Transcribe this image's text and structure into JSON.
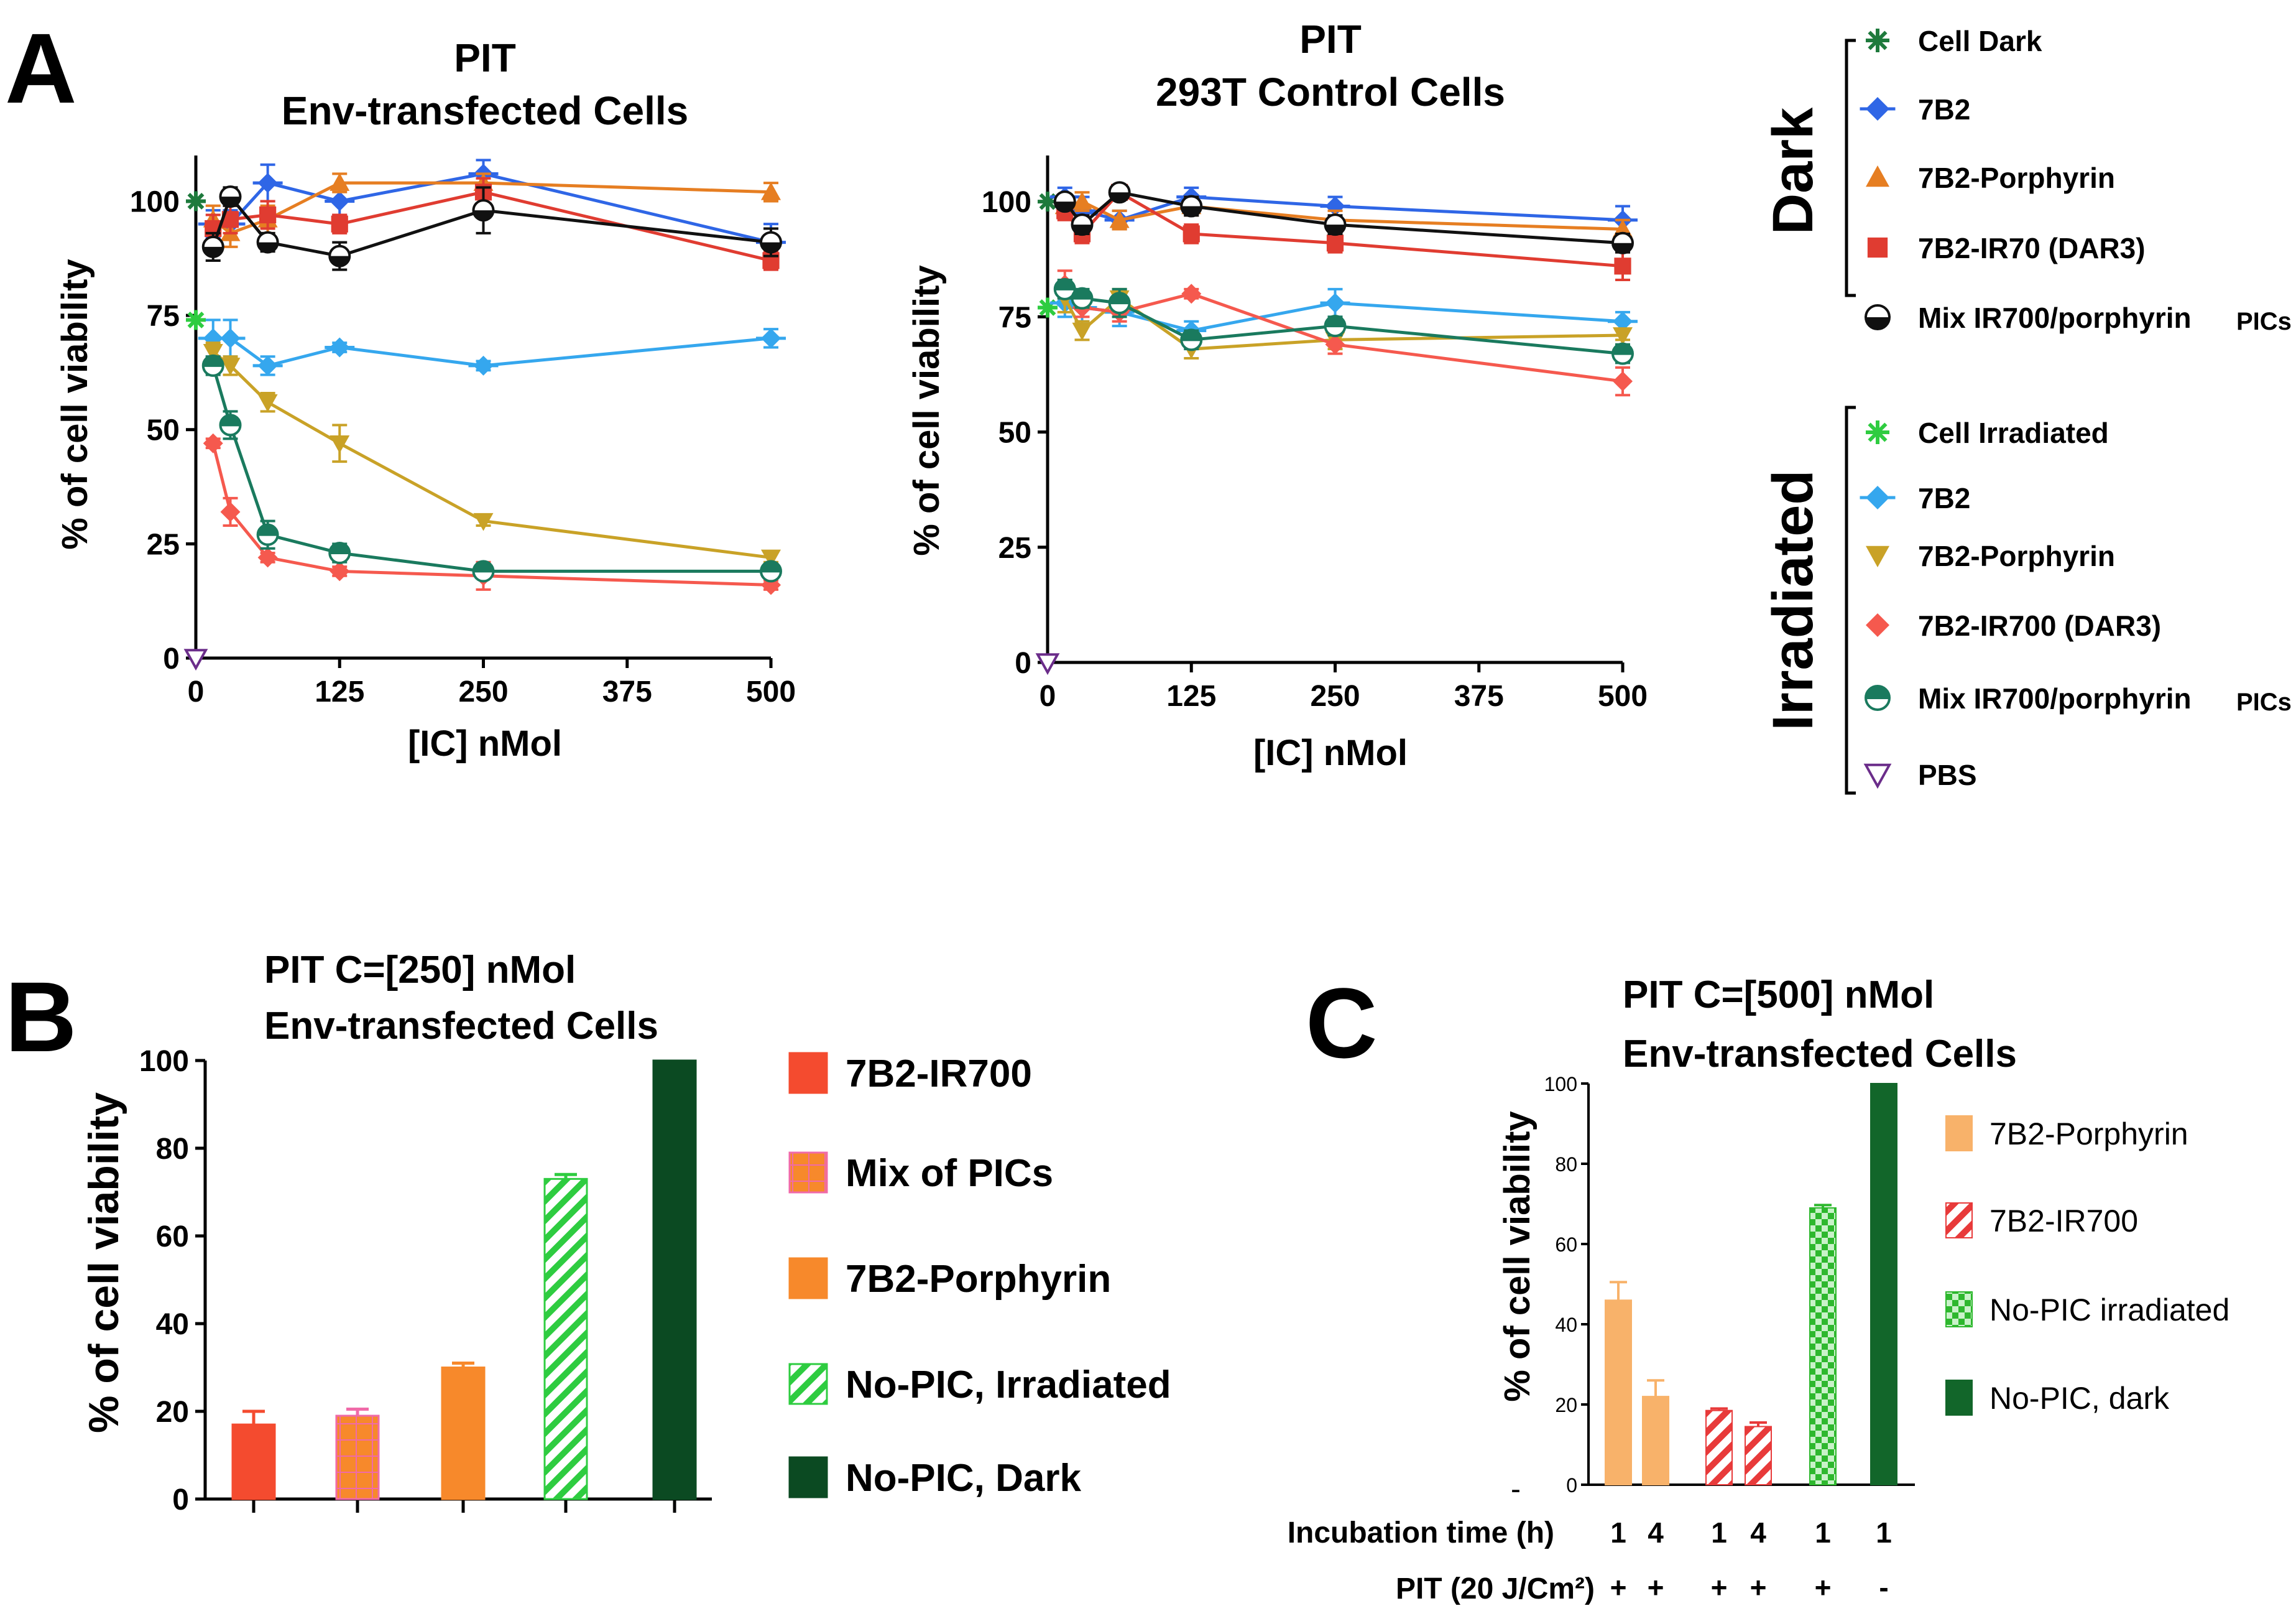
{
  "panels": {
    "A": "A",
    "B": "B",
    "C": "C"
  },
  "chart_data": [
    {
      "id": "A1",
      "type": "line",
      "title": [
        "PIT",
        "Env-transfected Cells"
      ],
      "xlabel": "[IC] nMol",
      "ylabel": "% of cell viability",
      "xlim": [
        0,
        500
      ],
      "ylim": [
        0,
        110
      ],
      "xticks": [
        "0",
        "125",
        "250",
        "375",
        "500"
      ],
      "yticks": [
        "0",
        "25",
        "50",
        "75",
        "100"
      ],
      "series": [
        {
          "key": "cell_dark",
          "x": [
            0
          ],
          "y": [
            100
          ],
          "err": [
            0
          ]
        },
        {
          "key": "b2_dark",
          "x": [
            15,
            30,
            62.5,
            125,
            250,
            500
          ],
          "y": [
            95,
            95,
            104,
            100,
            106,
            91
          ],
          "err": [
            3,
            3,
            4,
            3,
            3,
            4
          ]
        },
        {
          "key": "porph_dark",
          "x": [
            15,
            30,
            62.5,
            125,
            250,
            500
          ],
          "y": [
            96,
            93,
            96,
            104,
            104,
            102
          ],
          "err": [
            3,
            3,
            3,
            2,
            2,
            2
          ]
        },
        {
          "key": "ir_dark",
          "x": [
            15,
            30,
            62.5,
            125,
            250,
            500
          ],
          "y": [
            94,
            96,
            97,
            95,
            102,
            87
          ],
          "err": [
            3,
            3,
            3,
            2,
            3,
            2
          ]
        },
        {
          "key": "mix_dark",
          "x": [
            15,
            30,
            62.5,
            125,
            250,
            500
          ],
          "y": [
            90,
            101,
            91,
            88,
            98,
            91
          ],
          "err": [
            3,
            2,
            2,
            3,
            5,
            3
          ]
        },
        {
          "key": "cell_irr",
          "x": [
            0
          ],
          "y": [
            74
          ],
          "err": [
            0
          ]
        },
        {
          "key": "b2_irr",
          "x": [
            15,
            30,
            62.5,
            125,
            250,
            500
          ],
          "y": [
            70,
            70,
            64,
            68,
            64,
            70
          ],
          "err": [
            4,
            4,
            2,
            1,
            1,
            2
          ]
        },
        {
          "key": "porph_irr",
          "x": [
            15,
            30,
            62.5,
            125,
            250,
            500
          ],
          "y": [
            67,
            64,
            56,
            47,
            30,
            22
          ],
          "err": [
            2,
            2,
            2,
            4,
            1,
            1
          ]
        },
        {
          "key": "ir_irr",
          "x": [
            15,
            30,
            62.5,
            125,
            250,
            500
          ],
          "y": [
            47,
            32,
            22,
            19,
            18,
            16
          ],
          "err": [
            1,
            3,
            1,
            1,
            3,
            1
          ]
        },
        {
          "key": "mix_irr",
          "x": [
            15,
            30,
            62.5,
            125,
            250,
            500
          ],
          "y": [
            64,
            51,
            27,
            23,
            19,
            19
          ],
          "err": [
            2,
            3,
            3,
            2,
            1,
            1
          ]
        },
        {
          "key": "pbs",
          "x": [
            0
          ],
          "y": [
            0
          ],
          "err": [
            0
          ]
        }
      ]
    },
    {
      "id": "A2",
      "type": "line",
      "title": [
        "PIT",
        "293T Control Cells"
      ],
      "xlabel": "[IC] nMol",
      "ylabel": "% of cell viability",
      "xlim": [
        0,
        500
      ],
      "ylim": [
        0,
        110
      ],
      "xticks": [
        "0",
        "125",
        "250",
        "375",
        "500"
      ],
      "yticks": [
        "0",
        "25",
        "50",
        "75",
        "100"
      ],
      "series": [
        {
          "key": "cell_dark",
          "x": [
            0
          ],
          "y": [
            100
          ],
          "err": [
            0
          ]
        },
        {
          "key": "b2_dark",
          "x": [
            15,
            30,
            62.5,
            125,
            250,
            500
          ],
          "y": [
            101,
            98,
            96,
            101,
            99,
            96
          ],
          "err": [
            2,
            3,
            2,
            2,
            2,
            3
          ]
        },
        {
          "key": "porph_dark",
          "x": [
            15,
            30,
            62.5,
            125,
            250,
            500
          ],
          "y": [
            99,
            100,
            96,
            99,
            96,
            94
          ],
          "err": [
            2,
            2,
            2,
            2,
            2,
            2
          ]
        },
        {
          "key": "ir_dark",
          "x": [
            15,
            30,
            62.5,
            125,
            250,
            500
          ],
          "y": [
            98,
            93,
            102,
            93,
            91,
            86
          ],
          "err": [
            2,
            2,
            1,
            2,
            2,
            3
          ]
        },
        {
          "key": "mix_dark",
          "x": [
            15,
            30,
            62.5,
            125,
            250,
            500
          ],
          "y": [
            100,
            95,
            102,
            99,
            95,
            91
          ],
          "err": [
            1,
            2,
            1,
            2,
            2,
            2
          ]
        },
        {
          "key": "cell_irr",
          "x": [
            0
          ],
          "y": [
            77
          ],
          "err": [
            0
          ]
        },
        {
          "key": "b2_irr",
          "x": [
            15,
            30,
            62.5,
            125,
            250,
            500
          ],
          "y": [
            78,
            77,
            76,
            72,
            78,
            74
          ],
          "err": [
            3,
            3,
            3,
            2,
            3,
            2
          ]
        },
        {
          "key": "porph_irr",
          "x": [
            15,
            30,
            62.5,
            125,
            250,
            500
          ],
          "y": [
            79,
            72,
            79,
            68,
            70,
            71
          ],
          "err": [
            3,
            2,
            2,
            2,
            2,
            1
          ]
        },
        {
          "key": "ir_irr",
          "x": [
            15,
            30,
            62.5,
            125,
            250,
            500
          ],
          "y": [
            82,
            77,
            76,
            80,
            69,
            61
          ],
          "err": [
            3,
            2,
            2,
            1,
            2,
            3
          ]
        },
        {
          "key": "mix_irr",
          "x": [
            15,
            30,
            62.5,
            125,
            250,
            500
          ],
          "y": [
            81,
            79,
            78,
            70,
            73,
            67
          ],
          "err": [
            2,
            2,
            3,
            2,
            2,
            2
          ]
        },
        {
          "key": "pbs",
          "x": [
            0
          ],
          "y": [
            0
          ],
          "err": [
            0
          ]
        }
      ]
    },
    {
      "id": "B",
      "type": "bar",
      "title": [
        "PIT   C=[250] nMol",
        "Env-transfected Cells"
      ],
      "ylabel": "% of cell viability",
      "ylim": [
        0,
        100
      ],
      "yticks": [
        "0",
        "20",
        "40",
        "60",
        "80",
        "100"
      ],
      "categories": [
        "7B2-IR700",
        "Mix of PICs",
        "7B2-Porphyrin",
        "No-PIC, Irradiated",
        "No-PIC, Dark"
      ],
      "values": [
        17,
        19,
        30,
        73,
        100
      ],
      "errors": [
        3,
        1.5,
        1,
        1,
        0
      ]
    },
    {
      "id": "C",
      "type": "bar",
      "title": [
        "PIT   C=[500] nMol",
        "Env-transfected Cells"
      ],
      "ylabel": "% of cell viability",
      "ylim": [
        0,
        100
      ],
      "yticks": [
        "0",
        "20",
        "40",
        "60",
        "80",
        "100"
      ],
      "categories": [
        "7B2-Porphyrin",
        "7B2-Porphyrin",
        "7B2-IR700",
        "7B2-IR700",
        "No-PIC irradiated",
        "No-PIC, dark"
      ],
      "values": [
        46,
        22,
        18.5,
        14.5,
        69,
        100
      ],
      "errors": [
        4.5,
        4,
        0.5,
        1,
        0.7,
        0
      ],
      "incubation": [
        "1",
        "4",
        "1",
        "4",
        "1",
        "1"
      ],
      "pit": [
        "+",
        "+",
        "+",
        "+",
        "+",
        "-"
      ],
      "row_labels": {
        "incubation": "Incubation time (h)",
        "pit": "PIT (20 J/Cm²)"
      },
      "stray_mark": "-"
    }
  ],
  "legend_A": {
    "dark_group": "Dark",
    "irradiated_group": "Irradiated",
    "items": [
      {
        "key": "cell_dark",
        "label": "Cell Dark",
        "color": "#1e7a3c",
        "marker": "asterisk"
      },
      {
        "key": "b2_dark",
        "label": "7B2",
        "color": "#2f66e6",
        "marker": "diamond-h"
      },
      {
        "key": "porph_dark",
        "label": "7B2-Porphyrin",
        "color": "#e67e22",
        "marker": "triangle-up"
      },
      {
        "key": "ir_dark",
        "label": "7B2-IR70 (DAR3)",
        "color": "#e03c31",
        "marker": "square"
      },
      {
        "key": "mix_dark",
        "label": "Mix IR700/porphyrin",
        "suffix": "PICs",
        "color": "#111111",
        "marker": "half-circle"
      },
      {
        "key": "cell_irr",
        "label": "Cell Irradiated",
        "color": "#2ecc40",
        "marker": "asterisk"
      },
      {
        "key": "b2_irr",
        "label": "7B2",
        "color": "#35a7ee",
        "marker": "diamond-h"
      },
      {
        "key": "porph_irr",
        "label": "7B2-Porphyrin",
        "color": "#c9a227",
        "marker": "triangle-down"
      },
      {
        "key": "ir_irr",
        "label": "7B2-IR700 (DAR3)",
        "color": "#f5594e",
        "marker": "diamond"
      },
      {
        "key": "mix_irr",
        "label": "Mix IR700/porphyrin",
        "suffix": "PICs",
        "color": "#1a7a5e",
        "marker": "half-circle-h"
      },
      {
        "key": "pbs",
        "label": "PBS",
        "color": "#6b2d8a",
        "marker": "triangle-down-open"
      }
    ]
  },
  "legend_B": [
    {
      "label": "7B2-IR700",
      "color": "#f44b2f",
      "pattern": "solid"
    },
    {
      "label": "Mix of PICs",
      "color": "#f06aa8",
      "pattern": "grid"
    },
    {
      "label": "7B2-Porphyrin",
      "color": "#f7892b",
      "pattern": "solid"
    },
    {
      "label": "No-PIC, Irradiated",
      "color": "#2ecc40",
      "pattern": "hatch"
    },
    {
      "label": "No-PIC, Dark",
      "color": "#0b4a22",
      "pattern": "solid"
    }
  ],
  "legend_C": [
    {
      "label": "7B2-Porphyrin",
      "color": "#f8b26a",
      "pattern": "solid"
    },
    {
      "label": "7B2-IR700",
      "color": "#e83a3a",
      "pattern": "hatch"
    },
    {
      "label": "No-PIC irradiated",
      "color": "#2eb82e",
      "pattern": "checker"
    },
    {
      "label": "No-PIC, dark",
      "color": "#12662a",
      "pattern": "solid"
    }
  ]
}
